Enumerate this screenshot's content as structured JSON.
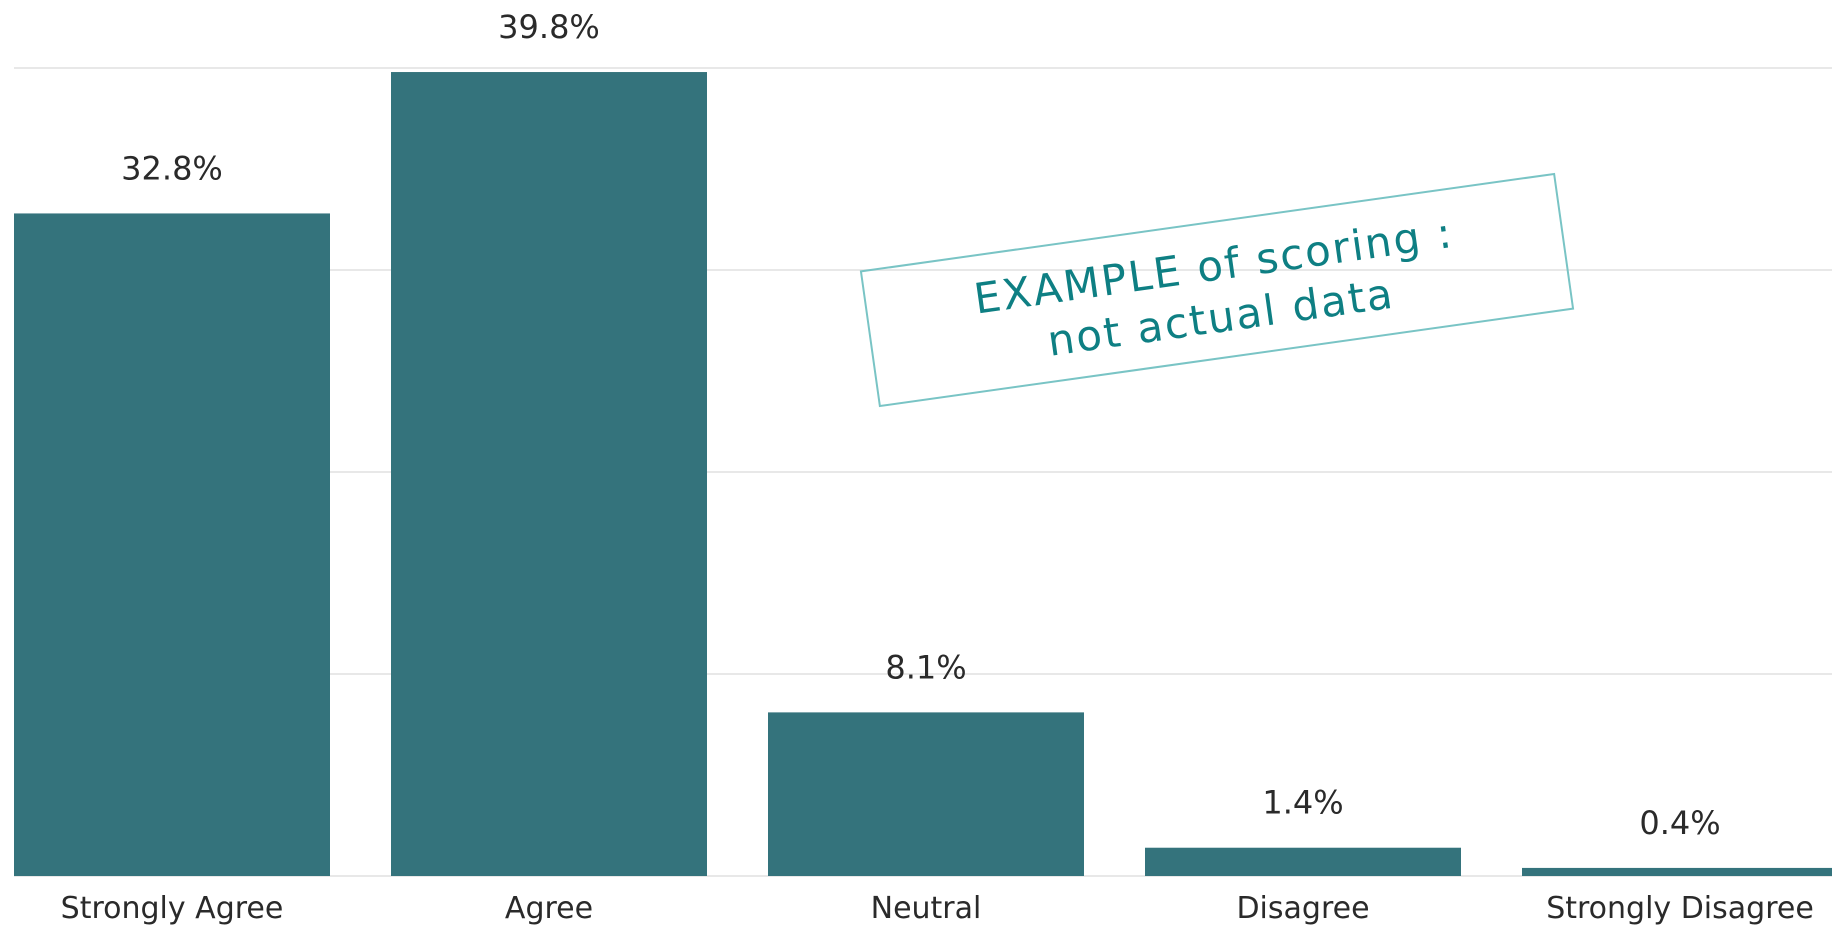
{
  "chart_data": {
    "type": "bar",
    "categories": [
      "Strongly Agree",
      "Agree",
      "Neutral",
      "Disagree",
      "Strongly Disagree"
    ],
    "values": [
      32.8,
      39.8,
      8.1,
      1.4,
      0.4
    ],
    "data_labels": [
      "32.8%",
      "39.8%",
      "8.1%",
      "1.4%",
      "0.4%"
    ],
    "ylim": [
      0,
      40
    ],
    "grid": true,
    "color": "#34737c"
  },
  "watermark": {
    "line1": "EXAMPLE of scoring :",
    "line2": "not actual data"
  }
}
